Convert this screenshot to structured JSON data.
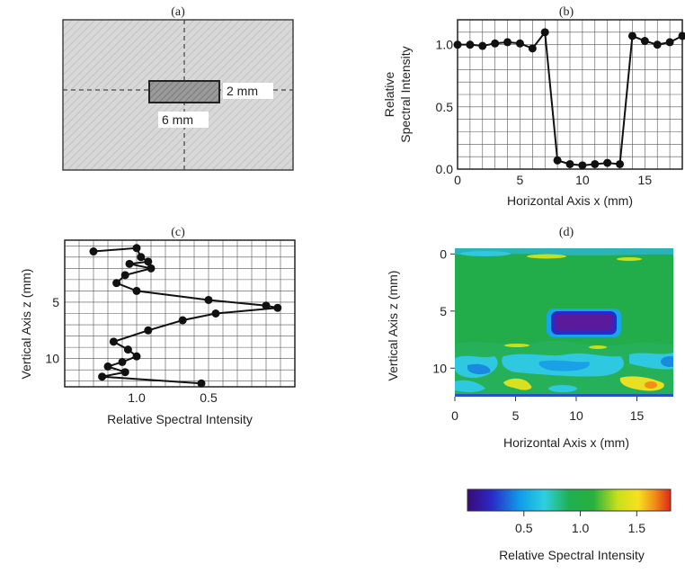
{
  "chart_data": [
    {
      "panel": "(a)",
      "type": "diagram",
      "title": "(a)",
      "annotations": [
        "2 mm",
        "6 mm"
      ]
    },
    {
      "panel": "(b)",
      "type": "line",
      "title": "(b)",
      "xlabel": "Horizontal Axis x (mm)",
      "ylabel_lines": [
        "Relative",
        "Spectral Intensity"
      ],
      "xlim": [
        0,
        18
      ],
      "ylim": [
        0,
        1.2
      ],
      "xticks": [
        "0",
        "5",
        "10",
        "15"
      ],
      "yticks": [
        "0.0",
        "0.5",
        "1.0"
      ],
      "grid": true,
      "x": [
        0,
        1,
        2,
        3,
        4,
        5,
        6,
        7,
        8,
        9,
        10,
        11,
        12,
        13,
        14,
        15,
        16,
        17,
        18
      ],
      "y": [
        1.0,
        1.0,
        0.99,
        1.01,
        1.02,
        1.01,
        0.97,
        1.1,
        0.07,
        0.04,
        0.03,
        0.04,
        0.05,
        0.04,
        1.07,
        1.03,
        1.0,
        1.02,
        1.07
      ]
    },
    {
      "panel": "(c)",
      "type": "line",
      "title": "(c)",
      "xlabel": "Relative Spectral Intensity",
      "ylabel": "Vertical Axis z (mm)",
      "xlim": [
        1.5,
        -0.1
      ],
      "ylim": [
        12.5,
        -0.5
      ],
      "xticks": [
        "1.0",
        "0.5"
      ],
      "yticks": [
        "5",
        "10"
      ],
      "grid": true,
      "x": [
        1.3,
        1.0,
        0.97,
        0.92,
        1.05,
        0.9,
        1.08,
        1.14,
        1.0,
        0.5,
        0.1,
        0.02,
        0.45,
        0.68,
        0.92,
        1.16,
        1.06,
        1.0,
        1.1,
        1.2,
        1.08,
        1.24,
        0.55
      ],
      "y": [
        0.5,
        0.2,
        1.0,
        1.4,
        1.6,
        2.0,
        2.6,
        3.3,
        4.0,
        4.8,
        5.3,
        5.5,
        6.0,
        6.6,
        7.5,
        8.5,
        9.2,
        9.8,
        10.3,
        10.7,
        11.2,
        11.6,
        12.2
      ]
    },
    {
      "panel": "(d)",
      "type": "heatmap",
      "title": "(d)",
      "xlabel": "Horizontal Axis x (mm)",
      "ylabel": "Vertical Axis z (mm)",
      "xlim": [
        0,
        18
      ],
      "ylim": [
        12.5,
        -0.5
      ],
      "xticks": [
        "0",
        "5",
        "10",
        "15"
      ],
      "yticks": [
        "0",
        "5",
        "10"
      ],
      "colorbar": {
        "label": "Relative Spectral Intensity",
        "range": [
          0.0,
          1.8
        ],
        "ticks": [
          "0.5",
          "1.0",
          "1.5"
        ],
        "colors": [
          "#3a0a78",
          "#2a2ac8",
          "#109ee8",
          "#2ed0e0",
          "#20b050",
          "#28b040",
          "#c8e01a",
          "#f8e020",
          "#f09018",
          "#e02818"
        ]
      },
      "regions": [
        {
          "x": [
            7.3,
            13.3
          ],
          "z": [
            5.0,
            7.4
          ],
          "value": 0.05,
          "note": "inclusion"
        },
        {
          "x": [
            0,
            18
          ],
          "z": [
            -0.5,
            12.5
          ],
          "value": 1.0,
          "note": "background"
        }
      ]
    }
  ]
}
